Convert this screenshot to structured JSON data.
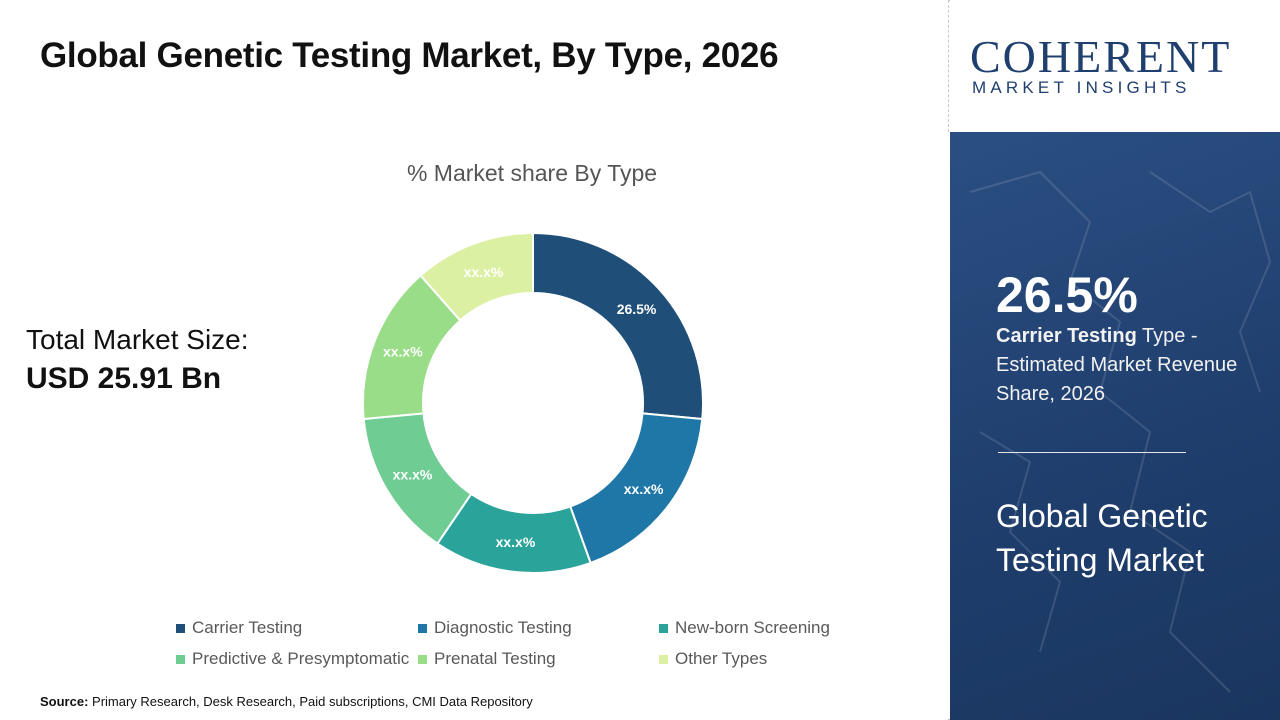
{
  "header": {
    "title": "Global Genetic Testing Market, By Type, 2026"
  },
  "market_size": {
    "label": "Total Market Size:",
    "value": "USD 25.91 Bn"
  },
  "source": {
    "label": "Source:",
    "text": " Primary Research, Desk Research, Paid subscriptions, CMI Data Repository"
  },
  "logo": {
    "main": "COHERENT",
    "sub": "MARKET INSIGHTS"
  },
  "highlight": {
    "value": "26.5%",
    "bold_text": "Carrier Testing",
    "desc_text": " Type - Estimated Market Revenue Share, 2026",
    "market_name": "Global Genetic Testing Market"
  },
  "chart_data": {
    "type": "pie",
    "title": "% Market share By Type",
    "categories": [
      "Carrier Testing",
      "Diagnostic Testing",
      "New-born Screening",
      "Predictive & Presymptomatic",
      "Prenatal Testing",
      "Other Types"
    ],
    "values": [
      26.5,
      18,
      15,
      14,
      15,
      11.5
    ],
    "labels": [
      "26.5%",
      "xx.x%",
      "xx.x%",
      "xx.x%",
      "xx.x%",
      "xx.x%"
    ],
    "colors": [
      "#1f4e79",
      "#1f77a8",
      "#2aa39a",
      "#6fcc93",
      "#99dd88",
      "#dcf0a3"
    ],
    "legend_position": "bottom"
  }
}
